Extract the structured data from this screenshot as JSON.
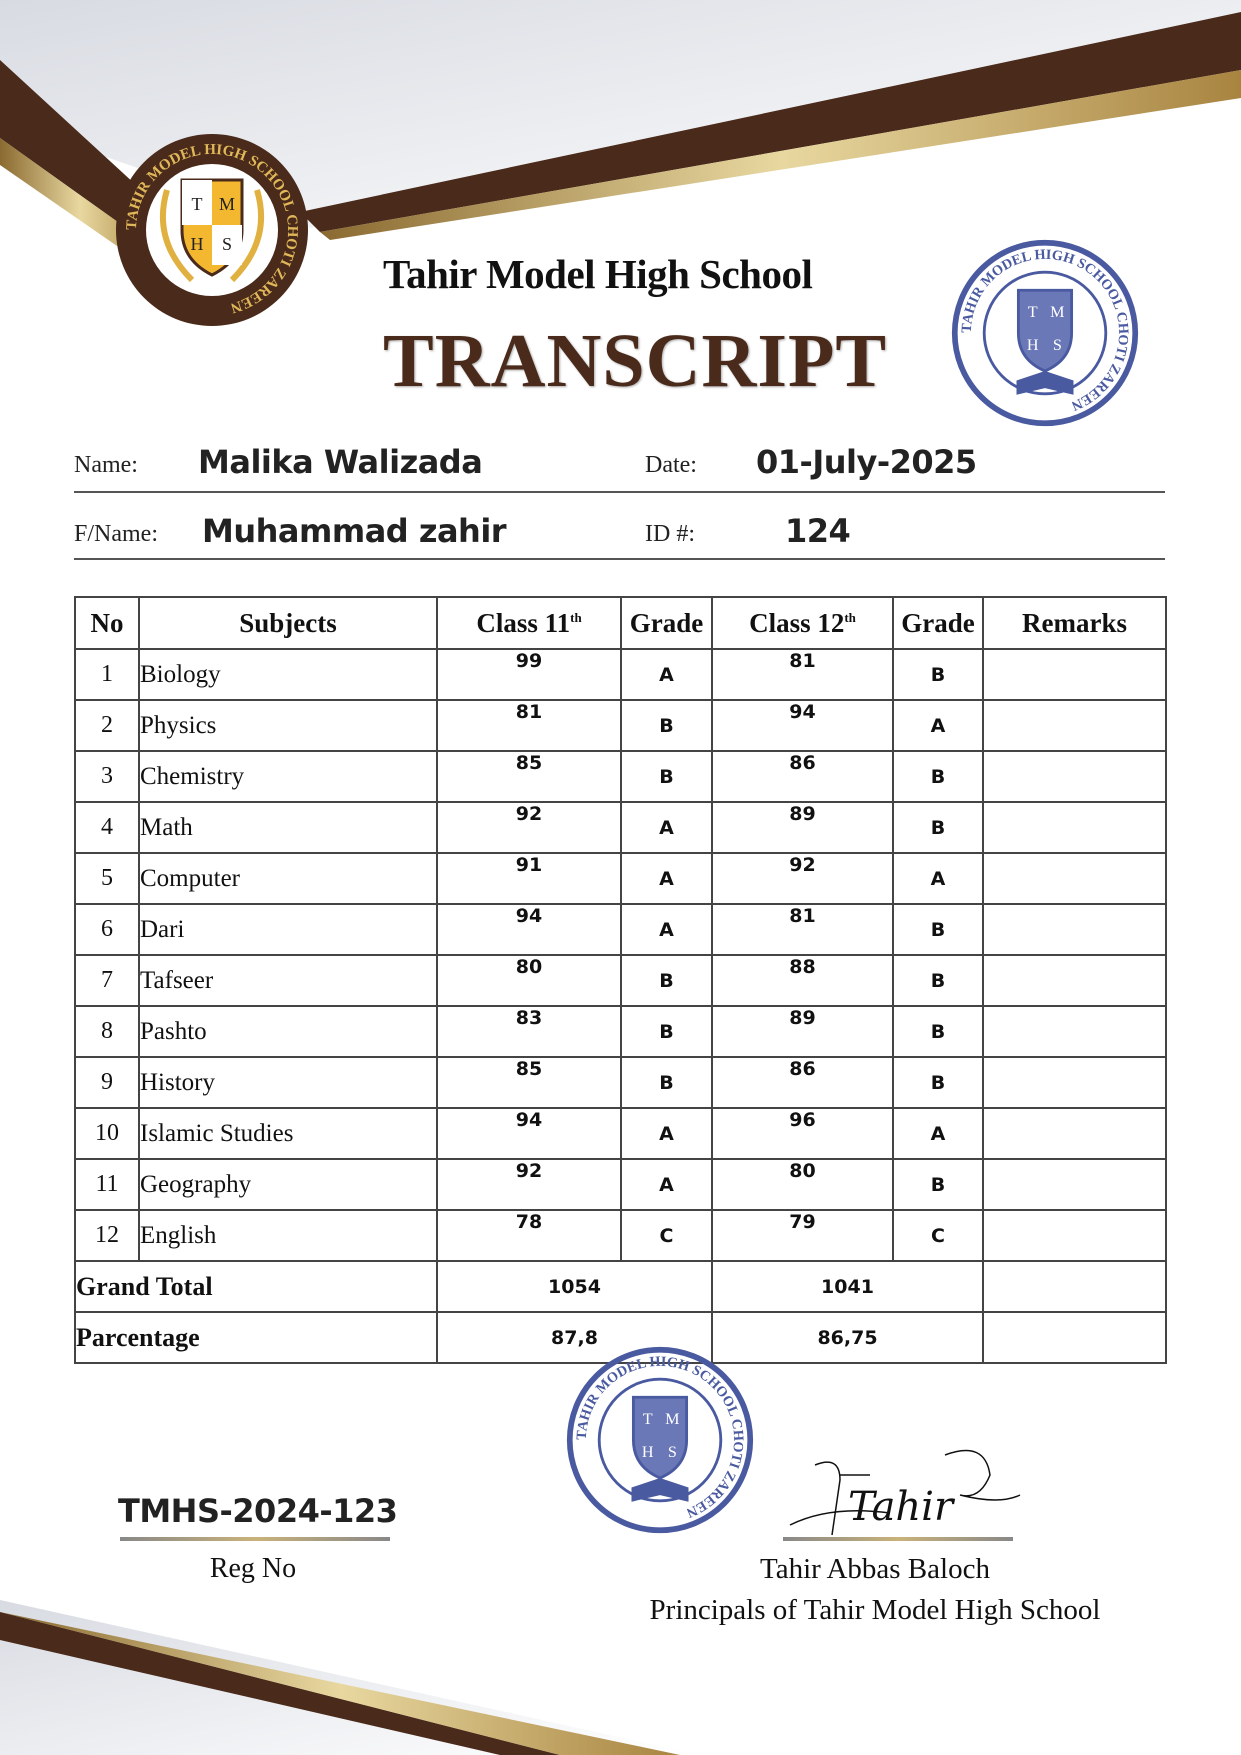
{
  "school_name": "Tahir Model High School",
  "document_title": "TRANSCRIPT",
  "logo": {
    "text_ring": "TAHIR MODEL HIGH SCHOOL CHOTI ZAREEN",
    "initials": [
      "T",
      "M",
      "H",
      "S"
    ]
  },
  "stamp": {
    "text_ring": "TAHIR MODEL HIGH SCHOOL CHOTI ZAREEN",
    "initials": [
      "T",
      "M",
      "H",
      "S"
    ],
    "color": "#4a5aa0"
  },
  "student": {
    "name_label": "Name:",
    "name": "Malika Walizada",
    "date_label": "Date:",
    "date": "01-July-2025",
    "father_label": "F/Name:",
    "father_name": "Muhammad zahir",
    "id_label": "ID #:",
    "id": "124"
  },
  "table": {
    "headers": {
      "no": "No",
      "subjects": "Subjects",
      "class11": "Class 11",
      "class11_sup": "th",
      "grade1": "Grade",
      "class12": "Class 12",
      "class12_sup": "th",
      "grade2": "Grade",
      "remarks": "Remarks"
    },
    "rows": [
      {
        "no": "1",
        "subject": "Biology",
        "c11": "99",
        "g11": "A",
        "c12": "81",
        "g12": "B",
        "remarks": ""
      },
      {
        "no": "2",
        "subject": "Physics",
        "c11": "81",
        "g11": "B",
        "c12": "94",
        "g12": "A",
        "remarks": ""
      },
      {
        "no": "3",
        "subject": "Chemistry",
        "c11": "85",
        "g11": "B",
        "c12": "86",
        "g12": "B",
        "remarks": ""
      },
      {
        "no": "4",
        "subject": "Math",
        "c11": "92",
        "g11": "A",
        "c12": "89",
        "g12": "B",
        "remarks": ""
      },
      {
        "no": "5",
        "subject": "Computer",
        "c11": "91",
        "g11": "A",
        "c12": "92",
        "g12": "A",
        "remarks": ""
      },
      {
        "no": "6",
        "subject": "Dari",
        "c11": "94",
        "g11": "A",
        "c12": "81",
        "g12": "B",
        "remarks": ""
      },
      {
        "no": "7",
        "subject": "Tafseer",
        "c11": "80",
        "g11": "B",
        "c12": "88",
        "g12": "B",
        "remarks": ""
      },
      {
        "no": "8",
        "subject": "Pashto",
        "c11": "83",
        "g11": "B",
        "c12": "89",
        "g12": "B",
        "remarks": ""
      },
      {
        "no": "9",
        "subject": "History",
        "c11": "85",
        "g11": "B",
        "c12": "86",
        "g12": "B",
        "remarks": ""
      },
      {
        "no": "10",
        "subject": "Islamic Studies",
        "c11": "94",
        "g11": "A",
        "c12": "96",
        "g12": "A",
        "remarks": ""
      },
      {
        "no": "11",
        "subject": "Geography",
        "c11": "92",
        "g11": "A",
        "c12": "80",
        "g12": "B",
        "remarks": ""
      },
      {
        "no": "12",
        "subject": "English",
        "c11": "78",
        "g11": "C",
        "c12": "79",
        "g12": "C",
        "remarks": ""
      }
    ],
    "grand_total": {
      "label": "Grand Total",
      "class11": "1054",
      "class12": "1041"
    },
    "percentage": {
      "label": "Parcentage",
      "class11": "87,8",
      "class12": "86,75"
    }
  },
  "registration": {
    "number": "TMHS-2024-123",
    "label": "Reg No"
  },
  "signatory": {
    "signature": "Tahir",
    "name": "Tahir Abbas Baloch",
    "title": "Principals of Tahir Model High School"
  },
  "colors": {
    "brown": "#4a2a1a",
    "gold": "#c9a45a",
    "stamp_blue": "#4a5aa0"
  }
}
